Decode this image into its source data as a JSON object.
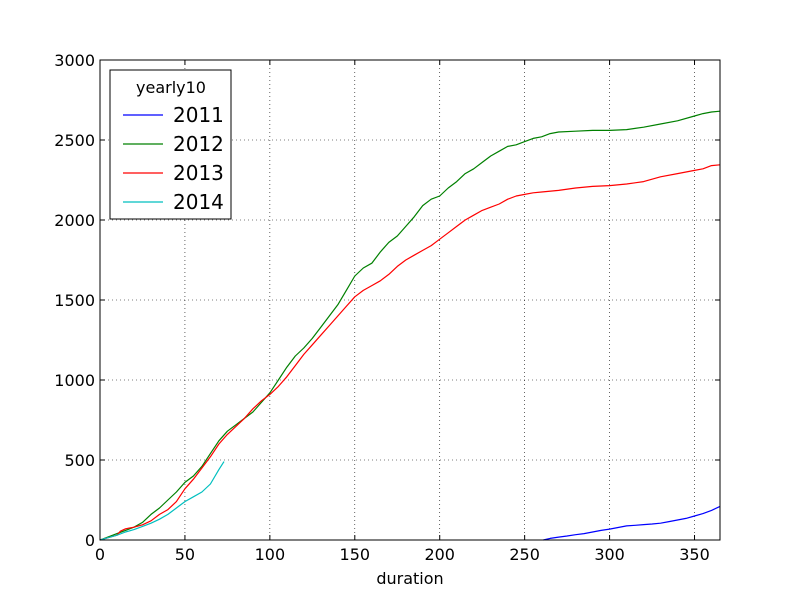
{
  "chart_data": {
    "type": "line",
    "title": "",
    "xlabel": "duration",
    "ylabel": "",
    "xlim": [
      0,
      365
    ],
    "ylim": [
      0,
      3000
    ],
    "xticks": [
      0,
      50,
      100,
      150,
      200,
      250,
      300,
      350
    ],
    "yticks": [
      0,
      500,
      1000,
      1500,
      2000,
      2500,
      3000
    ],
    "grid": true,
    "legend": {
      "title": "yearly10",
      "placement": "top-left"
    },
    "series": [
      {
        "name": "2011",
        "color": "#0000ff",
        "points": [
          [
            261,
            0
          ],
          [
            265,
            10
          ],
          [
            270,
            18
          ],
          [
            275,
            25
          ],
          [
            280,
            33
          ],
          [
            285,
            40
          ],
          [
            290,
            50
          ],
          [
            295,
            60
          ],
          [
            300,
            68
          ],
          [
            305,
            78
          ],
          [
            310,
            88
          ],
          [
            315,
            92
          ],
          [
            320,
            96
          ],
          [
            325,
            100
          ],
          [
            330,
            105
          ],
          [
            335,
            115
          ],
          [
            340,
            125
          ],
          [
            345,
            135
          ],
          [
            350,
            150
          ],
          [
            355,
            165
          ],
          [
            360,
            185
          ],
          [
            365,
            210
          ]
        ]
      },
      {
        "name": "2012",
        "color": "#008000",
        "points": [
          [
            0,
            0
          ],
          [
            5,
            20
          ],
          [
            10,
            40
          ],
          [
            15,
            60
          ],
          [
            20,
            80
          ],
          [
            25,
            110
          ],
          [
            30,
            160
          ],
          [
            35,
            200
          ],
          [
            40,
            250
          ],
          [
            45,
            300
          ],
          [
            50,
            360
          ],
          [
            55,
            400
          ],
          [
            60,
            460
          ],
          [
            65,
            540
          ],
          [
            70,
            620
          ],
          [
            75,
            680
          ],
          [
            80,
            720
          ],
          [
            85,
            760
          ],
          [
            90,
            800
          ],
          [
            95,
            860
          ],
          [
            100,
            920
          ],
          [
            105,
            1000
          ],
          [
            110,
            1080
          ],
          [
            115,
            1150
          ],
          [
            120,
            1200
          ],
          [
            125,
            1260
          ],
          [
            130,
            1330
          ],
          [
            135,
            1400
          ],
          [
            140,
            1470
          ],
          [
            145,
            1560
          ],
          [
            150,
            1650
          ],
          [
            155,
            1700
          ],
          [
            160,
            1730
          ],
          [
            165,
            1800
          ],
          [
            170,
            1860
          ],
          [
            175,
            1900
          ],
          [
            180,
            1960
          ],
          [
            185,
            2020
          ],
          [
            190,
            2090
          ],
          [
            195,
            2130
          ],
          [
            200,
            2150
          ],
          [
            205,
            2200
          ],
          [
            210,
            2240
          ],
          [
            215,
            2290
          ],
          [
            220,
            2320
          ],
          [
            225,
            2360
          ],
          [
            230,
            2400
          ],
          [
            235,
            2430
          ],
          [
            240,
            2460
          ],
          [
            245,
            2470
          ],
          [
            250,
            2490
          ],
          [
            255,
            2510
          ],
          [
            260,
            2520
          ],
          [
            265,
            2540
          ],
          [
            270,
            2550
          ],
          [
            280,
            2555
          ],
          [
            290,
            2560
          ],
          [
            300,
            2560
          ],
          [
            310,
            2565
          ],
          [
            320,
            2580
          ],
          [
            330,
            2600
          ],
          [
            340,
            2620
          ],
          [
            350,
            2650
          ],
          [
            355,
            2665
          ],
          [
            360,
            2675
          ],
          [
            365,
            2680
          ]
        ]
      },
      {
        "name": "2013",
        "color": "#ff0000",
        "points": [
          [
            0,
            0
          ],
          [
            5,
            15
          ],
          [
            10,
            30
          ],
          [
            12,
            55
          ],
          [
            15,
            70
          ],
          [
            20,
            80
          ],
          [
            25,
            95
          ],
          [
            30,
            120
          ],
          [
            35,
            160
          ],
          [
            40,
            190
          ],
          [
            45,
            240
          ],
          [
            50,
            320
          ],
          [
            55,
            380
          ],
          [
            60,
            450
          ],
          [
            65,
            520
          ],
          [
            70,
            600
          ],
          [
            75,
            660
          ],
          [
            80,
            710
          ],
          [
            85,
            760
          ],
          [
            90,
            820
          ],
          [
            95,
            870
          ],
          [
            100,
            910
          ],
          [
            105,
            960
          ],
          [
            110,
            1020
          ],
          [
            115,
            1090
          ],
          [
            120,
            1160
          ],
          [
            125,
            1220
          ],
          [
            130,
            1280
          ],
          [
            135,
            1340
          ],
          [
            140,
            1400
          ],
          [
            145,
            1460
          ],
          [
            150,
            1520
          ],
          [
            155,
            1560
          ],
          [
            160,
            1590
          ],
          [
            165,
            1620
          ],
          [
            170,
            1660
          ],
          [
            175,
            1710
          ],
          [
            180,
            1750
          ],
          [
            185,
            1780
          ],
          [
            190,
            1810
          ],
          [
            195,
            1840
          ],
          [
            200,
            1880
          ],
          [
            205,
            1920
          ],
          [
            210,
            1960
          ],
          [
            215,
            2000
          ],
          [
            220,
            2030
          ],
          [
            225,
            2060
          ],
          [
            230,
            2080
          ],
          [
            235,
            2100
          ],
          [
            240,
            2130
          ],
          [
            245,
            2150
          ],
          [
            250,
            2160
          ],
          [
            255,
            2170
          ],
          [
            260,
            2175
          ],
          [
            270,
            2185
          ],
          [
            280,
            2200
          ],
          [
            290,
            2210
          ],
          [
            300,
            2215
          ],
          [
            310,
            2225
          ],
          [
            320,
            2240
          ],
          [
            330,
            2270
          ],
          [
            340,
            2290
          ],
          [
            350,
            2310
          ],
          [
            355,
            2320
          ],
          [
            360,
            2340
          ],
          [
            365,
            2345
          ]
        ]
      },
      {
        "name": "2014",
        "color": "#00bfbf",
        "points": [
          [
            0,
            0
          ],
          [
            5,
            15
          ],
          [
            10,
            30
          ],
          [
            15,
            50
          ],
          [
            20,
            65
          ],
          [
            25,
            85
          ],
          [
            30,
            105
          ],
          [
            35,
            130
          ],
          [
            40,
            160
          ],
          [
            45,
            200
          ],
          [
            50,
            240
          ],
          [
            55,
            270
          ],
          [
            60,
            300
          ],
          [
            65,
            350
          ],
          [
            70,
            440
          ],
          [
            73,
            490
          ]
        ]
      }
    ]
  }
}
